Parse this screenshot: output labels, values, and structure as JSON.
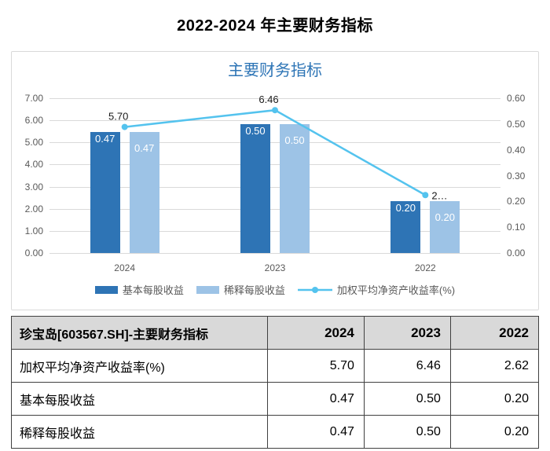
{
  "page_title": "2022-2024 年主要财务指标",
  "chart_data": {
    "type": "bar",
    "combo": "bar+line",
    "title": "主要财务指标",
    "categories": [
      "2024",
      "2023",
      "2022"
    ],
    "series": [
      {
        "key": "basic-eps",
        "name": "基本每股收益",
        "kind": "bar",
        "axis": "right",
        "values": [
          0.47,
          0.5,
          0.2
        ],
        "labels": [
          "0.47",
          "0.50",
          "0.20"
        ],
        "color": "#2e74b5"
      },
      {
        "key": "diluted-eps",
        "name": "稀释每股收益",
        "kind": "bar",
        "axis": "right",
        "values": [
          0.47,
          0.5,
          0.2
        ],
        "labels": [
          "0.47",
          "0.50",
          "0.20"
        ],
        "color": "#9dc3e6"
      },
      {
        "key": "roe",
        "name": "加权平均净资产收益率(%)",
        "kind": "line",
        "axis": "left",
        "values": [
          5.7,
          6.46,
          2.62
        ],
        "labels": [
          "5.70",
          "6.46",
          "2…"
        ],
        "label_positions": [
          "above",
          "above",
          "right"
        ],
        "color": "#54c3ee"
      }
    ],
    "left_axis": {
      "min": 0,
      "max": 7.0,
      "ticks": [
        "7.00",
        "6.00",
        "5.00",
        "4.00",
        "3.00",
        "2.00",
        "1.00",
        "0.00"
      ]
    },
    "right_axis": {
      "min": 0,
      "max": 0.6,
      "ticks": [
        "0.60",
        "0.50",
        "0.40",
        "0.30",
        "0.20",
        "0.10",
        "0.00"
      ]
    },
    "grid": true,
    "legend_position": "bottom",
    "colors": {
      "title": "#2e75b6",
      "axis_text": "#595959",
      "gridline": "#d9d9d9",
      "card_border": "#d9d9d9",
      "bar_label": "#ffffff",
      "point_label": "#1a1a1a"
    }
  },
  "table": {
    "header": [
      "珍宝岛[603567.SH]-主要财务指标",
      "2024",
      "2023",
      "2022"
    ],
    "rows": [
      [
        "加权平均净资产收益率(%)",
        "5.70",
        "6.46",
        "2.62"
      ],
      [
        "基本每股收益",
        "0.47",
        "0.50",
        "0.20"
      ],
      [
        "稀释每股收益",
        "0.47",
        "0.50",
        "0.20"
      ]
    ],
    "header_bg": "#d9d9d9",
    "border_color": "#404040"
  }
}
